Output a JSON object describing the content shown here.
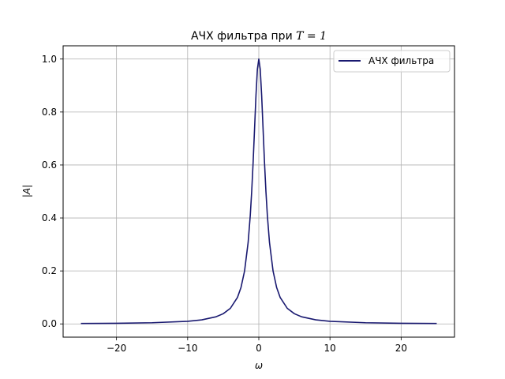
{
  "chart_data": {
    "type": "line",
    "title": "АЧХ фильтра при T = 1",
    "title_prefix": "АЧХ фильтра при ",
    "title_math": "T = 1",
    "xlabel": "ω",
    "ylabel": "|A|",
    "xlim": [
      -27.5,
      27.5
    ],
    "ylim": [
      -0.05,
      1.05
    ],
    "x_ticks": [
      -20,
      -10,
      0,
      10,
      20
    ],
    "x_tick_labels": [
      "−20",
      "−10",
      "0",
      "10",
      "20"
    ],
    "y_ticks": [
      0.0,
      0.2,
      0.4,
      0.6,
      0.8,
      1.0
    ],
    "y_tick_labels": [
      "0.0",
      "0.2",
      "0.4",
      "0.6",
      "0.8",
      "1.0"
    ],
    "grid": true,
    "legend_position": "top-right",
    "series": [
      {
        "name": "АЧХ фильтра",
        "color": "#191970",
        "x": [
          -25,
          -20,
          -15,
          -10,
          -8,
          -6,
          -5,
          -4,
          -3,
          -2.5,
          -2,
          -1.5,
          -1.2,
          -1,
          -0.8,
          -0.6,
          -0.4,
          -0.2,
          0,
          0.2,
          0.4,
          0.6,
          0.8,
          1,
          1.2,
          1.5,
          2,
          2.5,
          3,
          4,
          5,
          6,
          8,
          10,
          15,
          20,
          25
        ],
        "y": [
          0.0016,
          0.0025,
          0.0044,
          0.0099,
          0.0154,
          0.027,
          0.0385,
          0.0588,
          0.1,
          0.1379,
          0.2,
          0.3077,
          0.4098,
          0.5,
          0.6098,
          0.7353,
          0.8621,
          0.9615,
          1.0,
          0.9615,
          0.8621,
          0.7353,
          0.6098,
          0.5,
          0.4098,
          0.3077,
          0.2,
          0.1379,
          0.1,
          0.0588,
          0.0385,
          0.027,
          0.0154,
          0.0099,
          0.0044,
          0.0025,
          0.0016
        ]
      }
    ]
  }
}
